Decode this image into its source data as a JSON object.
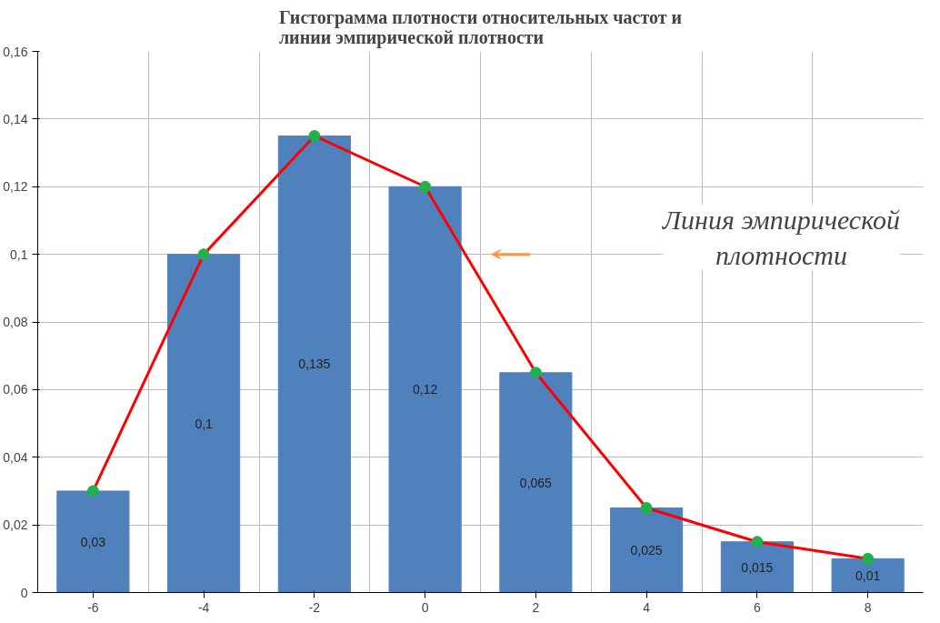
{
  "chart_data": {
    "type": "bar",
    "title": "Гистограмма плотности относительных частот и\nлинии эмпирической плотности",
    "categories": [
      "-6",
      "-4",
      "-2",
      "0",
      "2",
      "4",
      "6",
      "8"
    ],
    "series": [
      {
        "color": "#4f81bd",
        "values": [
          0.03,
          0.1,
          0.135,
          0.12,
          0.065,
          0.025,
          0.015,
          0.01
        ],
        "value_labels": [
          "0,03",
          "0,1",
          "0,135",
          "0,12",
          "0,065",
          "0,025",
          "0,015",
          "0,01"
        ]
      },
      {
        "type": "line",
        "color": "#ff0000",
        "colors": [
          "#22b14c",
          "#22b14c",
          "#22b14c",
          "#22b14c",
          "#22b14c",
          "#22b14c",
          "#22b14c",
          "#22b14c"
        ],
        "marker": "circle",
        "values": [
          0.03,
          0.1,
          0.135,
          0.12,
          0.065,
          0.025,
          0.015,
          0.01
        ]
      }
    ],
    "ylim": [
      0,
      0.16
    ],
    "yticks": [
      0,
      {
        "value": 0.02,
        "label": "0,02"
      },
      {
        "value": 0.04,
        "label": "0,04"
      },
      {
        "value": 0.06,
        "label": "0,06"
      },
      {
        "value": 0.08,
        "label": "0,08"
      },
      {
        "value": 0.1,
        "label": "0,1"
      },
      {
        "value": 0.12,
        "label": "0,12"
      },
      {
        "value": 0.14,
        "label": "0,14"
      },
      {
        "value": 0.16,
        "label": "0,16"
      }
    ],
    "grid": true,
    "annotations": [
      "Линия эмпирической плотности"
    ]
  }
}
